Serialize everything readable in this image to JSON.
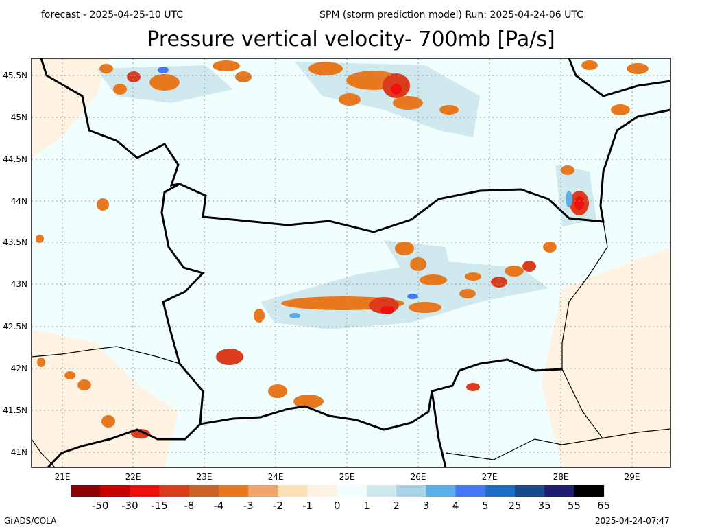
{
  "header": {
    "forecast_text": "forecast - 2025-04-25-10 UTC",
    "run_text": "SPM (storm prediction model) Run: 2025-04-24-06 UTC"
  },
  "title": "Pressure vertical velocity- 700mb [Pa/s]",
  "axes": {
    "lat_labels": [
      "45.5N",
      "45N",
      "44.5N",
      "44N",
      "43.5N",
      "43N",
      "42.5N",
      "42N",
      "41.5N",
      "41N"
    ],
    "lon_labels": [
      "21E",
      "22E",
      "23E",
      "24E",
      "25E",
      "26E",
      "27E",
      "28E",
      "29E"
    ]
  },
  "colorbar": {
    "colors": [
      "#8b0000",
      "#c80000",
      "#f01010",
      "#dc3c1e",
      "#c86428",
      "#e8781e",
      "#f0a46e",
      "#fde0b4",
      "#fef2e2",
      "#f0fefe",
      "#cfe9ee",
      "#a9d3e6",
      "#5caee8",
      "#4678f5",
      "#1e6ec8",
      "#194a8c",
      "#1e1e6e",
      "#000000"
    ],
    "labels": [
      "-50",
      "-30",
      "-15",
      "-8",
      "-4",
      "-3",
      "-2",
      "-1",
      "0",
      "1",
      "2",
      "3",
      "4",
      "5",
      "25",
      "35",
      "55",
      "65"
    ]
  },
  "footer": {
    "left": "GrADS/COLA",
    "right": "2025-04-24-07:47"
  }
}
